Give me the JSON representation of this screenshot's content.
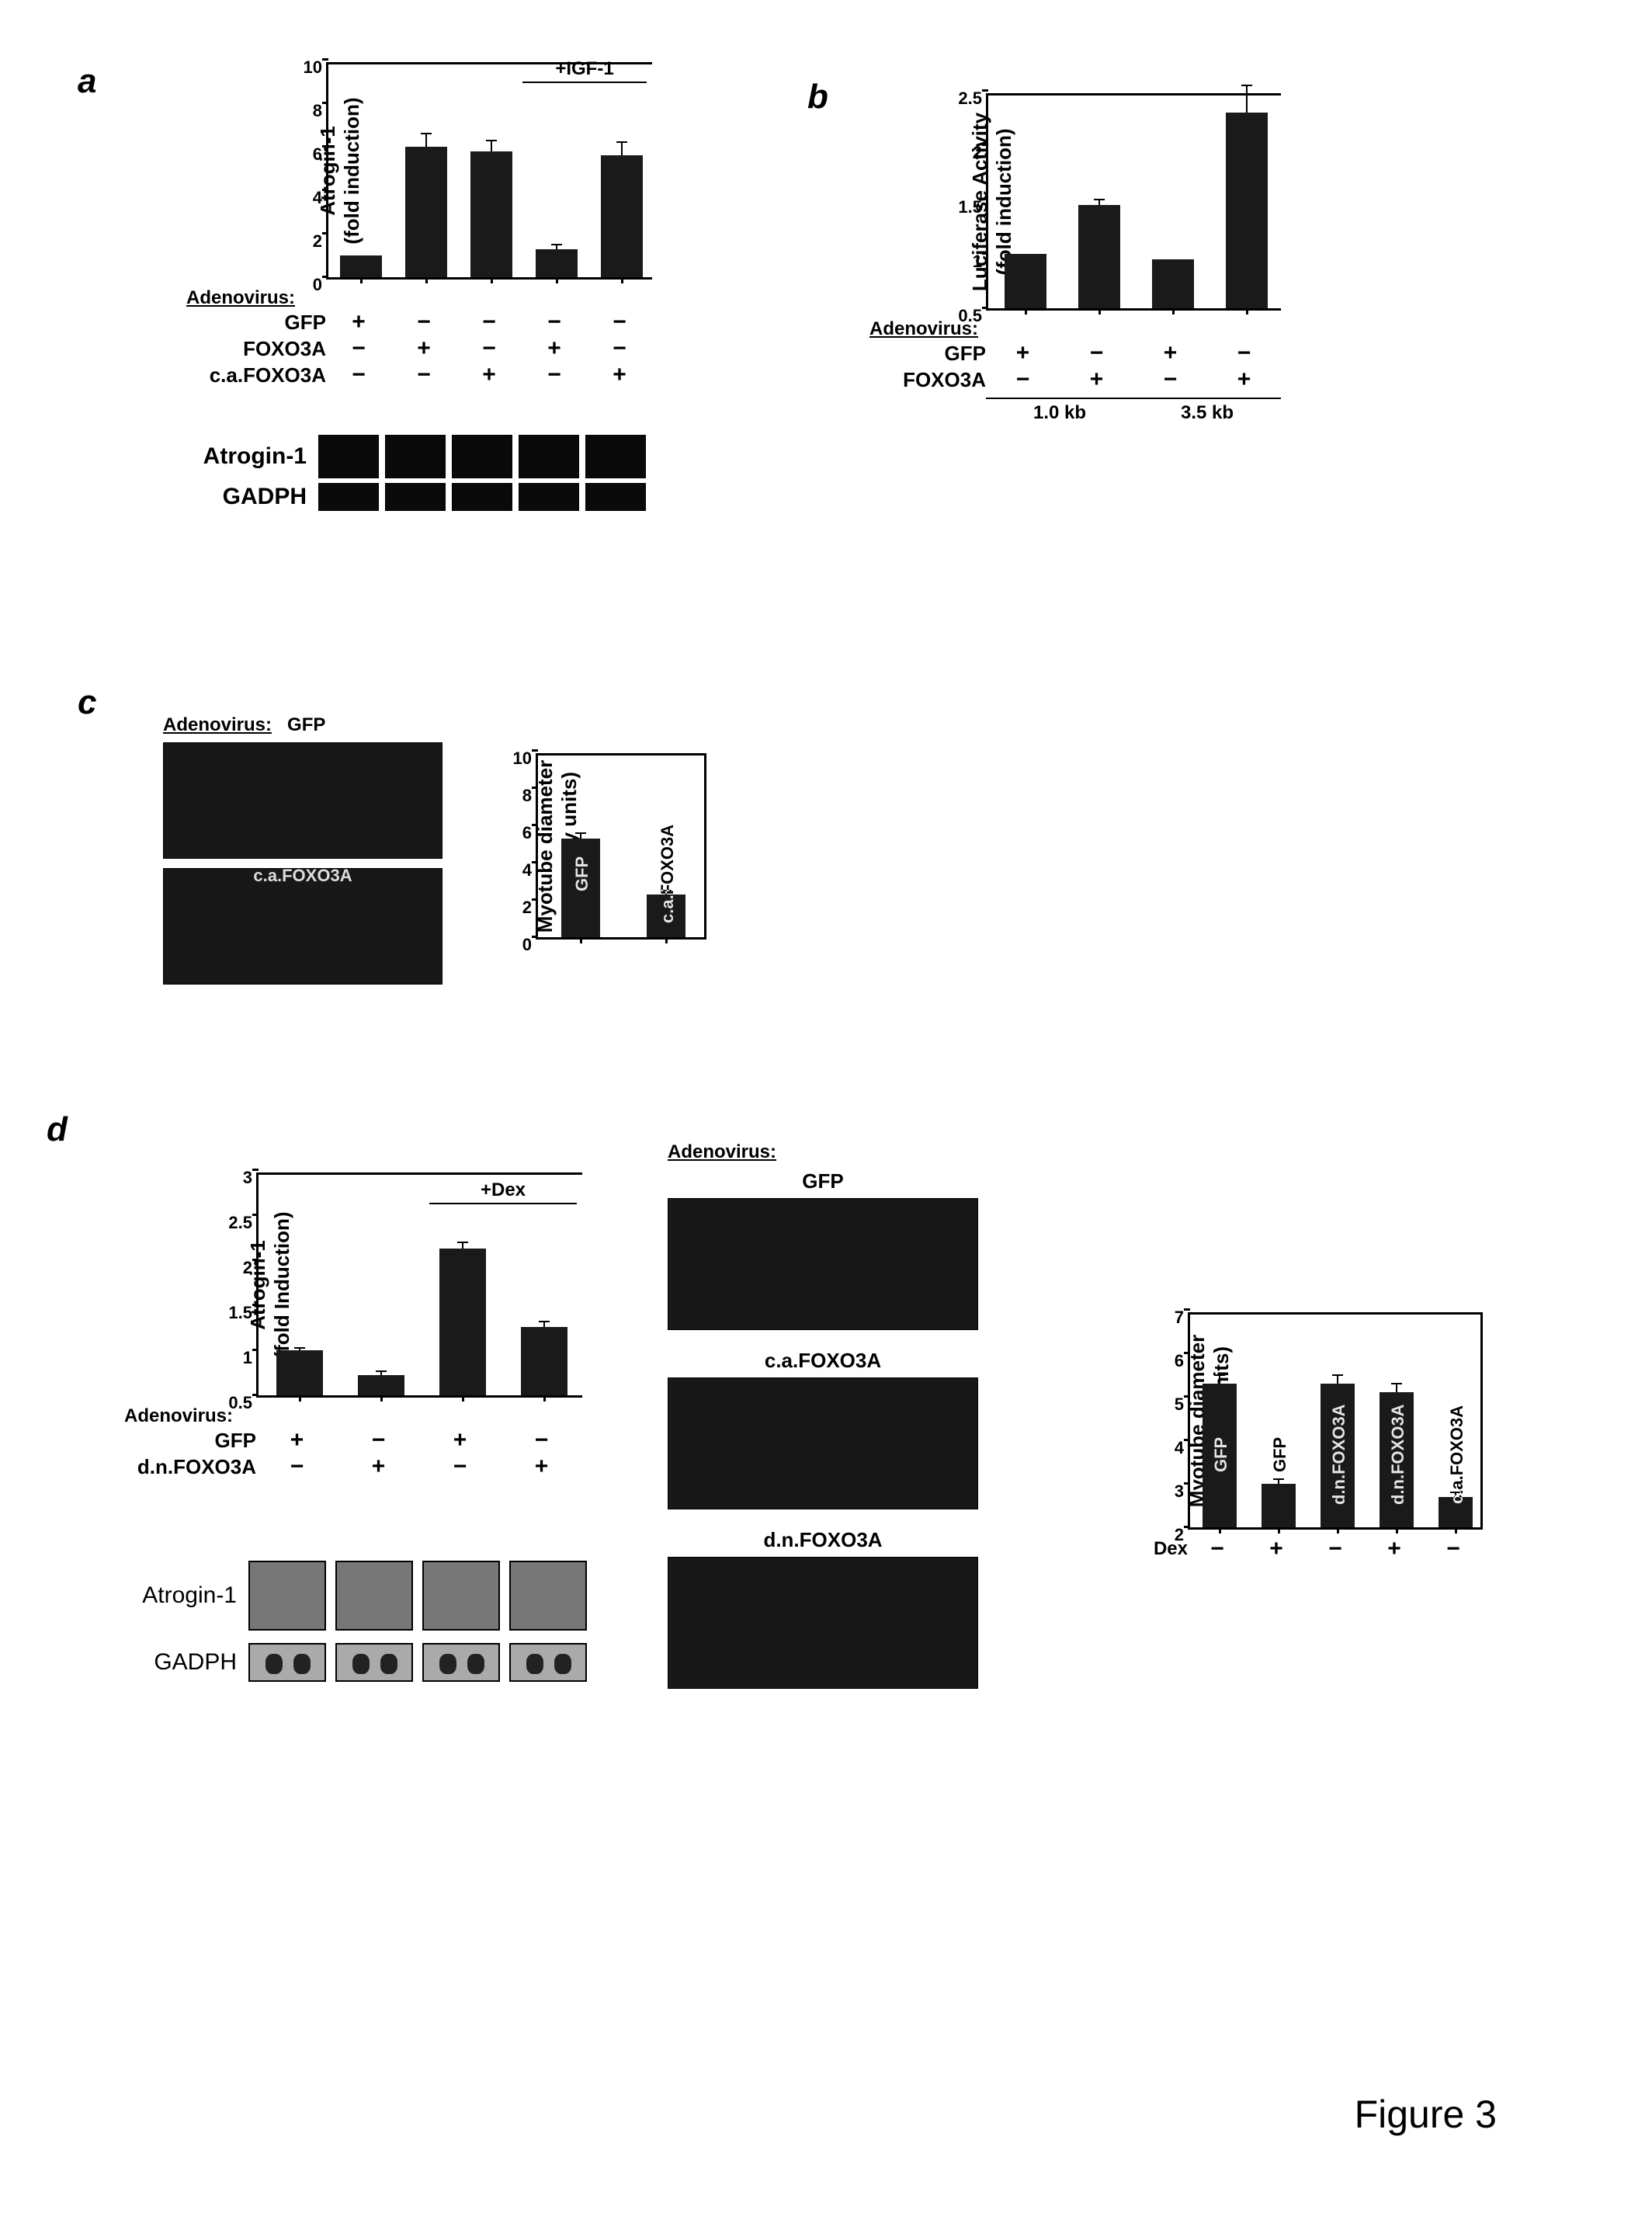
{
  "figure_number": "Figure 3",
  "colors": {
    "bar": "#1a1a1a",
    "background": "#ffffff",
    "axis": "#000000",
    "micrograph": "#181818",
    "blot": "#0a0a0a",
    "blot_alt": "#555555"
  },
  "panel_a": {
    "letter": "a",
    "chart": {
      "type": "bar",
      "y_title_line1": "Atrogin-1",
      "y_title_line2": "(fold induction)",
      "ylim": [
        0,
        10
      ],
      "yticks": [
        0,
        2,
        4,
        6,
        8,
        10
      ],
      "values": [
        1.0,
        6.0,
        5.8,
        1.3,
        5.6
      ],
      "errors": [
        0,
        0.6,
        0.5,
        0.2,
        0.6
      ],
      "bar_color": "#1a1a1a",
      "annotation_text": "+IGF-1",
      "annotation_start_bar": 3,
      "annotation_end_bar": 4
    },
    "table": {
      "header": "Adenovirus:",
      "rows": [
        {
          "label": "GFP",
          "cells": [
            "+",
            "−",
            "−",
            "−",
            "−"
          ]
        },
        {
          "label": "FOXO3A",
          "cells": [
            "−",
            "+",
            "−",
            "+",
            "−"
          ]
        },
        {
          "label": "c.a.FOXO3A",
          "cells": [
            "−",
            "−",
            "+",
            "−",
            "+"
          ]
        }
      ]
    },
    "blots": {
      "labels": [
        "Atrogin-1",
        "GADPH"
      ],
      "lanes": 5
    }
  },
  "panel_b": {
    "letter": "b",
    "chart": {
      "type": "bar",
      "y_title_line1": "Luciferase Activity",
      "y_title_line2": "(fold induction)",
      "ylim": [
        0.5,
        2.5
      ],
      "yticks": [
        0.5,
        1.0,
        1.5,
        2.0,
        2.5
      ],
      "values": [
        1.0,
        1.45,
        0.95,
        2.3
      ],
      "errors": [
        0,
        0.05,
        0,
        0.25
      ],
      "bar_color": "#1a1a1a"
    },
    "table": {
      "header": "Adenovirus:",
      "rows": [
        {
          "label": "GFP",
          "cells": [
            "+",
            "−",
            "+",
            "−"
          ]
        },
        {
          "label": "FOXO3A",
          "cells": [
            "−",
            "+",
            "−",
            "+"
          ]
        }
      ],
      "group_labels": [
        "1.0 kb",
        "3.5 kb"
      ]
    }
  },
  "panel_c": {
    "letter": "c",
    "adenovirus_label": "Adenovirus:",
    "micrographs": {
      "top_label": "GFP",
      "bottom_label": "c.a.FOXO3A"
    },
    "chart": {
      "type": "bar",
      "y_title_line1": "Myotube diameter",
      "y_title_line2": "(arbitrary units)",
      "ylim": [
        0,
        10
      ],
      "yticks": [
        0,
        2,
        4,
        6,
        8,
        10
      ],
      "categories": [
        "GFP",
        "c.a.FOXO3A"
      ],
      "values": [
        5.3,
        2.3
      ],
      "errors": [
        0.3,
        0.2
      ],
      "bar_color": "#1a1a1a"
    }
  },
  "panel_d": {
    "letter": "d",
    "left_chart": {
      "type": "bar",
      "y_title_line1": "Atrogin-1",
      "y_title_line2": "(fold Induction)",
      "ylim": [
        0.5,
        3.0
      ],
      "yticks": [
        0.5,
        1.0,
        1.5,
        2.0,
        2.5,
        3.0
      ],
      "values": [
        1.0,
        0.72,
        2.13,
        1.26
      ],
      "errors": [
        0.03,
        0.05,
        0.07,
        0.06
      ],
      "bar_color": "#1a1a1a",
      "annotation_text": "+Dex",
      "annotation_start_bar": 2,
      "annotation_end_bar": 3
    },
    "left_table": {
      "header": "Adenovirus:",
      "rows": [
        {
          "label": "GFP",
          "cells": [
            "+",
            "−",
            "+",
            "−"
          ]
        },
        {
          "label": "d.n.FOXO3A",
          "cells": [
            "−",
            "+",
            "−",
            "+"
          ]
        }
      ]
    },
    "blots": {
      "labels": [
        "Atrogin-1",
        "GADPH"
      ],
      "lanes": 4
    },
    "middle": {
      "header": "Adenovirus:",
      "micrographs": [
        "GFP",
        "c.a.FOXO3A",
        "d.n.FOXO3A"
      ]
    },
    "right_chart": {
      "type": "bar",
      "y_title_line1": "Myotube diameter",
      "y_title_line2": "(arbitrary units)",
      "ylim": [
        2,
        7
      ],
      "yticks": [
        2,
        3,
        4,
        5,
        6,
        7
      ],
      "categories": [
        "GFP",
        "GFP",
        "d.n.FOXO3A",
        "d.n.FOXO3A",
        "c.a.FOXO3A"
      ],
      "values": [
        5.3,
        3.0,
        5.3,
        5.1,
        2.7
      ],
      "errors": [
        0.2,
        0.1,
        0.2,
        0.2,
        0.1
      ],
      "dex_label": "Dex",
      "dex_row": [
        "−",
        "+",
        "−",
        "+",
        "−"
      ],
      "bar_color": "#1a1a1a"
    }
  }
}
